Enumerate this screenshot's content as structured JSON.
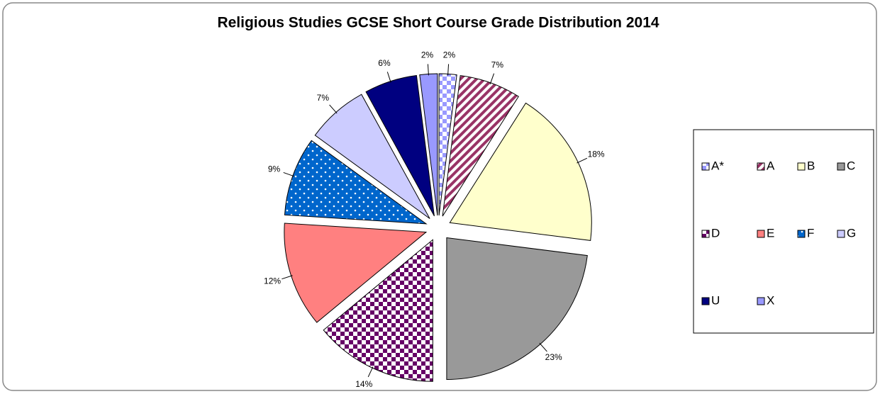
{
  "chart_data": {
    "type": "pie",
    "title": "Religious Studies GCSE Short Course Grade Distribution 2014",
    "categories": [
      "A*",
      "A",
      "B",
      "C",
      "D",
      "E",
      "F",
      "G",
      "U",
      "X"
    ],
    "values": [
      2,
      7,
      18,
      23,
      14,
      12,
      9,
      7,
      6,
      2
    ],
    "value_labels": [
      "2%",
      "7%",
      "18%",
      "23%",
      "14%",
      "12%",
      "9%",
      "7%",
      "6%",
      "2%"
    ],
    "colors": [
      "#9999ff",
      "#993366",
      "#ffffcc",
      "#999999",
      "#660066",
      "#ff8080",
      "#0066cc",
      "#ccccff",
      "#000080",
      "#9999ff"
    ],
    "patterns": [
      "checker",
      "diagonal",
      "solid",
      "solid",
      "checker",
      "solid",
      "dots",
      "solid",
      "solid",
      "solid"
    ],
    "legend": "right"
  }
}
